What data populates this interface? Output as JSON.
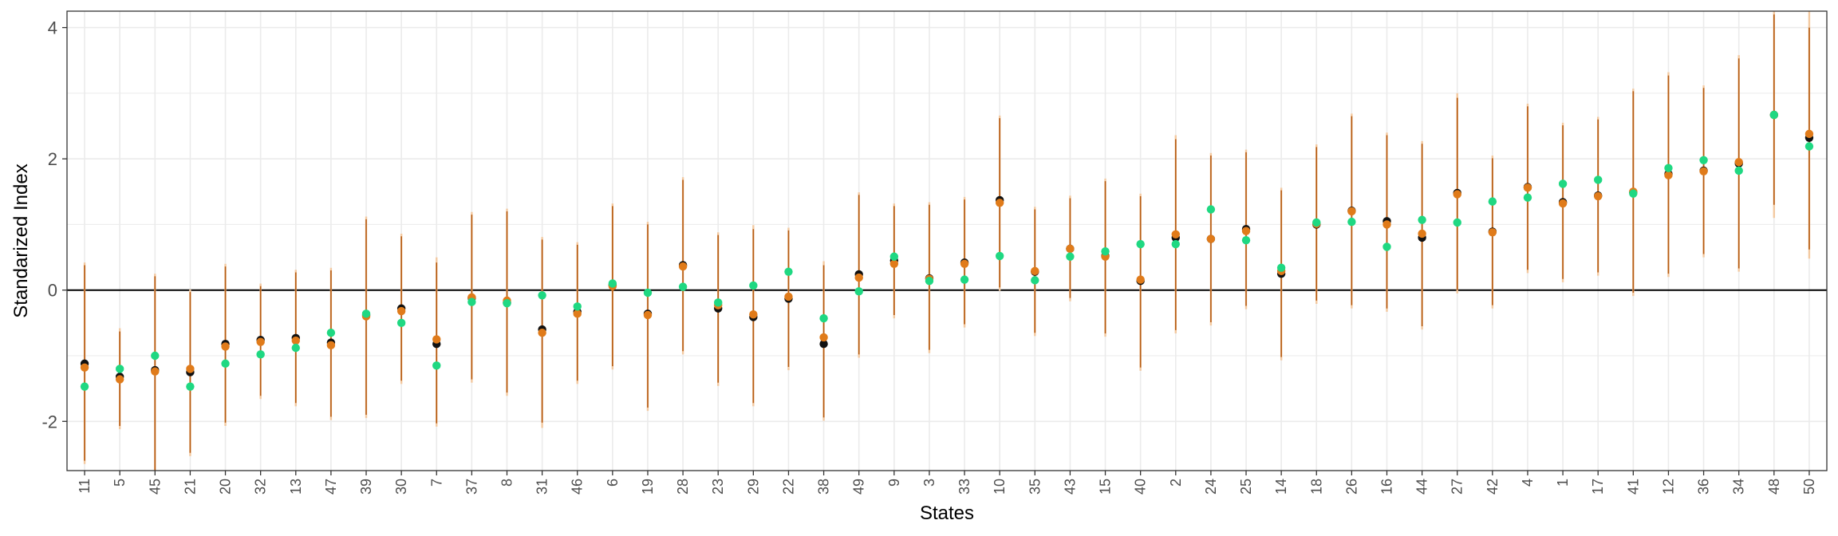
{
  "chart_data": {
    "type": "scatter",
    "xlabel": "States",
    "ylabel": "Standarized Index",
    "ylim": [
      -2.75,
      4.25
    ],
    "y_ticks": [
      "-2",
      "0",
      "2",
      "4"
    ],
    "grid": true,
    "reference_line_y": 0,
    "colors": {
      "black_points": "#111111",
      "orange_points": "#e07b1a",
      "green_points": "#1fd882",
      "interval_lines": "#b45a12",
      "interval_lines_light": "#f3c9a0",
      "grid": "#ebebeb",
      "frame": "#333333"
    },
    "categories": [
      "11",
      "5",
      "45",
      "21",
      "20",
      "32",
      "13",
      "47",
      "39",
      "30",
      "7",
      "37",
      "8",
      "31",
      "46",
      "6",
      "19",
      "28",
      "23",
      "29",
      "22",
      "38",
      "49",
      "9",
      "3",
      "33",
      "10",
      "35",
      "43",
      "15",
      "40",
      "2",
      "24",
      "25",
      "14",
      "18",
      "26",
      "16",
      "44",
      "27",
      "42",
      "4",
      "1",
      "17",
      "41",
      "12",
      "36",
      "34",
      "48",
      "50"
    ],
    "series": [
      {
        "values": [
          -1.12,
          -1.32,
          -1.22,
          -1.25,
          -0.82,
          -0.76,
          -0.73,
          -0.8,
          -0.38,
          -0.28,
          -0.82,
          -0.12,
          -0.19,
          -0.6,
          -0.33,
          0.08,
          -0.36,
          0.38,
          -0.28,
          -0.41,
          -0.13,
          -0.82,
          0.24,
          0.45,
          0.18,
          0.42,
          1.37,
          0.28,
          0.63,
          0.52,
          0.14,
          0.8,
          0.78,
          0.93,
          0.25,
          1.0,
          1.21,
          1.05,
          0.8,
          1.48,
          0.89,
          1.57,
          1.34,
          1.44,
          1.49,
          1.77,
          1.82,
          1.93,
          2.67,
          2.32
        ]
      },
      {
        "values": [
          -1.18,
          -1.36,
          -1.24,
          -1.2,
          -0.86,
          -0.79,
          -0.77,
          -0.84,
          -0.4,
          -0.32,
          -0.75,
          -0.11,
          -0.16,
          -0.65,
          -0.36,
          0.06,
          -0.38,
          0.36,
          -0.23,
          -0.37,
          -0.1,
          -0.72,
          0.19,
          0.4,
          0.17,
          0.4,
          1.33,
          0.29,
          0.63,
          0.51,
          0.16,
          0.85,
          0.78,
          0.9,
          0.29,
          1.01,
          1.2,
          1.0,
          0.86,
          1.46,
          0.88,
          1.56,
          1.32,
          1.43,
          1.5,
          1.75,
          1.81,
          1.95,
          2.67,
          2.38
        ]
      },
      {
        "values": [
          -1.47,
          -1.2,
          -1.0,
          -1.47,
          -1.12,
          -0.98,
          -0.88,
          -0.65,
          -0.36,
          -0.5,
          -1.15,
          -0.18,
          -0.2,
          -0.08,
          -0.25,
          0.1,
          -0.04,
          0.05,
          -0.19,
          0.07,
          0.28,
          -0.43,
          -0.02,
          0.51,
          0.14,
          0.16,
          0.52,
          0.15,
          0.51,
          0.59,
          0.7,
          0.7,
          1.23,
          0.76,
          0.34,
          1.03,
          1.04,
          0.66,
          1.07,
          1.03,
          1.35,
          1.41,
          1.62,
          1.68,
          1.47,
          1.86,
          1.98,
          1.82,
          2.67,
          2.19
        ]
      }
    ],
    "intervals": [
      {
        "low": -2.6,
        "high": 0.38,
        "low_light": -2.65,
        "high_light": 0.42
      },
      {
        "low": -2.07,
        "high": -0.63,
        "low_light": -2.12,
        "high_light": -0.58
      },
      {
        "low": -2.75,
        "high": 0.21,
        "low_light": -2.75,
        "high_light": 0.25
      },
      {
        "low": -2.48,
        "high": -0.03,
        "low_light": -2.53,
        "high_light": 0.01
      },
      {
        "low": -2.02,
        "high": 0.36,
        "low_light": -2.07,
        "high_light": 0.4
      },
      {
        "low": -1.61,
        "high": 0.06,
        "low_light": -1.66,
        "high_light": 0.1
      },
      {
        "low": -1.72,
        "high": 0.27,
        "low_light": -1.77,
        "high_light": 0.31
      },
      {
        "low": -1.93,
        "high": 0.3,
        "low_light": -1.98,
        "high_light": 0.34
      },
      {
        "low": -1.9,
        "high": 1.08,
        "low_light": -1.95,
        "high_light": 1.12
      },
      {
        "low": -1.38,
        "high": 0.82,
        "low_light": -1.43,
        "high_light": 0.86
      },
      {
        "low": -2.03,
        "high": 0.42,
        "low_light": -2.08,
        "high_light": 0.5
      },
      {
        "low": -1.36,
        "high": 1.15,
        "low_light": -1.41,
        "high_light": 1.19
      },
      {
        "low": -1.56,
        "high": 1.2,
        "low_light": -1.61,
        "high_light": 1.24
      },
      {
        "low": -2.02,
        "high": 0.77,
        "low_light": -2.1,
        "high_light": 0.81
      },
      {
        "low": -1.38,
        "high": 0.69,
        "low_light": -1.43,
        "high_light": 0.73
      },
      {
        "low": -1.16,
        "high": 1.28,
        "low_light": -1.21,
        "high_light": 1.32
      },
      {
        "low": -1.79,
        "high": 1.0,
        "low_light": -1.84,
        "high_light": 1.04
      },
      {
        "low": -0.93,
        "high": 1.68,
        "low_light": -0.98,
        "high_light": 1.72
      },
      {
        "low": -1.41,
        "high": 0.84,
        "low_light": -1.46,
        "high_light": 0.88
      },
      {
        "low": -1.72,
        "high": 0.93,
        "low_light": -1.77,
        "high_light": 0.99
      },
      {
        "low": -1.17,
        "high": 0.91,
        "low_light": -1.22,
        "high_light": 0.95
      },
      {
        "low": -1.94,
        "high": 0.38,
        "low_light": -1.99,
        "high_light": 0.44
      },
      {
        "low": -0.98,
        "high": 1.45,
        "low_light": -1.03,
        "high_light": 1.49
      },
      {
        "low": -0.38,
        "high": 1.28,
        "low_light": -0.43,
        "high_light": 1.32
      },
      {
        "low": -0.91,
        "high": 1.3,
        "low_light": -0.96,
        "high_light": 1.34
      },
      {
        "low": -0.52,
        "high": 1.38,
        "low_light": -0.57,
        "high_light": 1.42
      },
      {
        "low": 0.04,
        "high": 2.62,
        "low_light": -0.01,
        "high_light": 2.66
      },
      {
        "low": -0.65,
        "high": 1.23,
        "low_light": -0.7,
        "high_light": 1.27
      },
      {
        "low": -0.12,
        "high": 1.4,
        "low_light": -0.17,
        "high_light": 1.44
      },
      {
        "low": -0.66,
        "high": 1.66,
        "low_light": -0.71,
        "high_light": 1.7
      },
      {
        "low": -1.18,
        "high": 1.43,
        "low_light": -1.23,
        "high_light": 1.47
      },
      {
        "low": -0.61,
        "high": 2.3,
        "low_light": -0.66,
        "high_light": 2.36
      },
      {
        "low": -0.49,
        "high": 2.05,
        "low_light": -0.54,
        "high_light": 2.09
      },
      {
        "low": -0.24,
        "high": 2.1,
        "low_light": -0.29,
        "high_light": 2.14
      },
      {
        "low": -1.02,
        "high": 1.52,
        "low_light": -1.07,
        "high_light": 1.56
      },
      {
        "low": -0.16,
        "high": 2.18,
        "low_light": -0.21,
        "high_light": 2.22
      },
      {
        "low": -0.23,
        "high": 2.65,
        "low_light": -0.28,
        "high_light": 2.69
      },
      {
        "low": -0.28,
        "high": 2.36,
        "low_light": -0.33,
        "high_light": 2.4
      },
      {
        "low": -0.55,
        "high": 2.23,
        "low_light": -0.6,
        "high_light": 2.27
      },
      {
        "low": 0.0,
        "high": 2.93,
        "low_light": -0.05,
        "high_light": 3.0
      },
      {
        "low": -0.23,
        "high": 2.01,
        "low_light": -0.28,
        "high_light": 2.05
      },
      {
        "low": 0.31,
        "high": 2.8,
        "low_light": 0.26,
        "high_light": 2.84
      },
      {
        "low": 0.17,
        "high": 2.51,
        "low_light": 0.12,
        "high_light": 2.55
      },
      {
        "low": 0.27,
        "high": 2.6,
        "low_light": 0.22,
        "high_light": 2.64
      },
      {
        "low": -0.04,
        "high": 3.03,
        "low_light": -0.09,
        "high_light": 3.07
      },
      {
        "low": 0.25,
        "high": 3.27,
        "low_light": 0.2,
        "high_light": 3.32
      },
      {
        "low": 0.55,
        "high": 3.08,
        "low_light": 0.5,
        "high_light": 3.12
      },
      {
        "low": 0.33,
        "high": 3.53,
        "low_light": 0.28,
        "high_light": 3.58
      },
      {
        "low": 1.3,
        "high": 4.2,
        "low_light": 1.1,
        "high_light": 4.25
      },
      {
        "low": 0.62,
        "high": 4.0,
        "low_light": 0.48,
        "high_light": 4.25
      }
    ]
  }
}
